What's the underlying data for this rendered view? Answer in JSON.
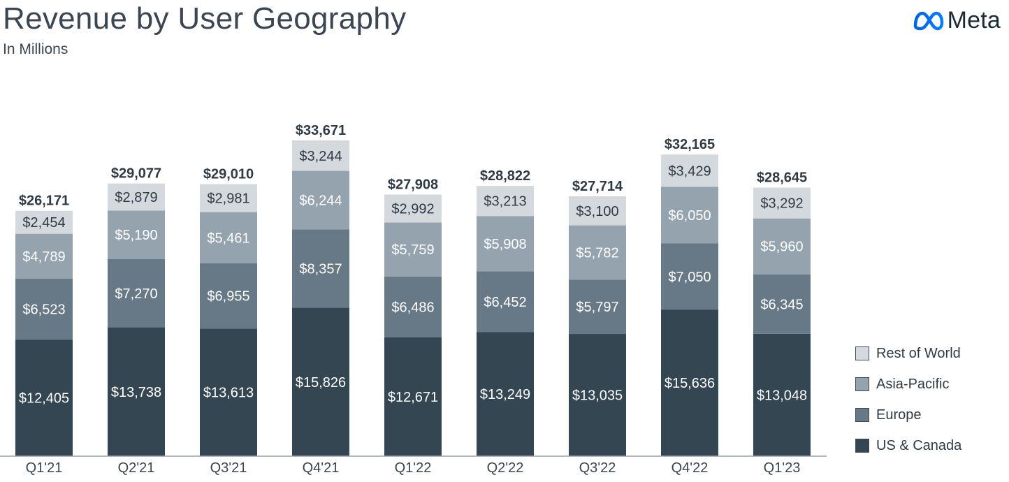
{
  "header": {
    "title": "Revenue by User Geography",
    "subtitle": "In Millions"
  },
  "logo": {
    "text": "Meta",
    "icon": "meta-infinity-icon",
    "color": "#0a7cff"
  },
  "colors": {
    "us_canada": "#344652",
    "europe": "#677887",
    "asia_pacific": "#95a3ae",
    "rest_of_world": "#d4d9dd",
    "axis": "#9aa3ab",
    "label_dark": "#ffffff",
    "label_light": "#2f3a45",
    "total": "#2f3a45"
  },
  "chart_data": {
    "type": "bar",
    "stacked": true,
    "title": "Revenue by User Geography",
    "subtitle": "In Millions",
    "xlabel": "",
    "ylabel": "",
    "categories": [
      "Q1'21",
      "Q2'21",
      "Q3'21",
      "Q4'21",
      "Q1'22",
      "Q2'22",
      "Q3'22",
      "Q4'22",
      "Q1'23"
    ],
    "series": [
      {
        "name": "US & Canada",
        "key": "us_canada",
        "values": [
          12405,
          13738,
          13613,
          15826,
          12671,
          13249,
          13035,
          15636,
          13048
        ]
      },
      {
        "name": "Europe",
        "key": "europe",
        "values": [
          6523,
          7270,
          6955,
          8357,
          6486,
          6452,
          5797,
          7050,
          6345
        ]
      },
      {
        "name": "Asia-Pacific",
        "key": "asia_pacific",
        "values": [
          4789,
          5190,
          5461,
          6244,
          5759,
          5908,
          5782,
          6050,
          5960
        ]
      },
      {
        "name": "Rest of World",
        "key": "rest_of_world",
        "values": [
          2454,
          2879,
          2981,
          3244,
          2992,
          3213,
          3100,
          3429,
          3292
        ]
      }
    ],
    "value_labels": [
      [
        "$12,405",
        "$13,738",
        "$13,613",
        "$15,826",
        "$12,671",
        "$13,249",
        "$13,035",
        "$15,636",
        "$13,048"
      ],
      [
        "$6,523",
        "$7,270",
        "$6,955",
        "$8,357",
        "$6,486",
        "$6,452",
        "$5,797",
        "$7,050",
        "$6,345"
      ],
      [
        "$4,789",
        "$5,190",
        "$5,461",
        "$6,244",
        "$5,759",
        "$5,908",
        "$5,782",
        "$6,050",
        "$5,960"
      ],
      [
        "$2,454",
        "$2,879",
        "$2,981",
        "$3,244",
        "$2,992",
        "$3,213",
        "$3,100",
        "$3,429",
        "$3,292"
      ]
    ],
    "totals": [
      26171,
      29077,
      29010,
      33671,
      27908,
      28822,
      27714,
      32165,
      28645
    ],
    "total_labels": [
      "$26,171",
      "$29,077",
      "$29,010",
      "$33,671",
      "$27,908",
      "$28,822",
      "$27,714",
      "$32,165",
      "$28,645"
    ],
    "legend": [
      "Rest of World",
      "Asia-Pacific",
      "Europe",
      "US & Canada"
    ],
    "legend_position": "right",
    "ylim": [
      0,
      36000
    ],
    "grid": false
  }
}
